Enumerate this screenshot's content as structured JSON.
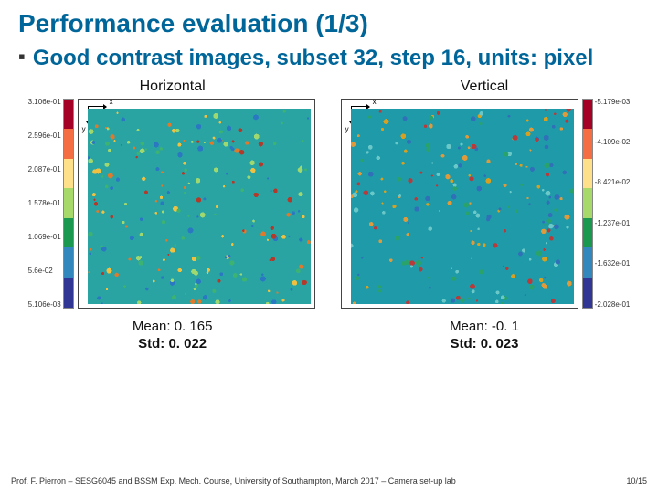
{
  "title": "Performance evaluation (1/3)",
  "subtitle": "Good contrast images, subset 32, step 16, units: pixel",
  "bullet_glyph": "▪",
  "panels": {
    "left": {
      "title": "Horizontal",
      "mean_label": "Mean: 0. 165",
      "std_label": "Std: 0. 022",
      "colorbar_side": "left",
      "cbar_labels": [
        "3.106e-01",
        "2.596e-01",
        "2.087e-01",
        "1.578e-01",
        "1.069e-01",
        "5.6e-02",
        "5.106e-03"
      ],
      "cbar_colors": [
        "#a50026",
        "#f46d43",
        "#fee08b",
        "#a6d96a",
        "#1a9850",
        "#3288bd",
        "#313695"
      ],
      "speckle_base": "#2aa3a3",
      "speckle_accents": [
        "#3cb371",
        "#f0c040",
        "#e0792a",
        "#2a78c2",
        "#a0d870",
        "#b33a2a"
      ]
    },
    "right": {
      "title": "Vertical",
      "mean_label": "Mean: -0. 1",
      "std_label": "Std: 0. 023",
      "colorbar_side": "right",
      "cbar_labels": [
        "-5.179e-03",
        "-4.109e-02",
        "-8.421e-02",
        "-1.237e-01",
        "-1.632e-01",
        "-2.028e-01"
      ],
      "cbar_colors": [
        "#a50026",
        "#f46d43",
        "#fee08b",
        "#a6d96a",
        "#1a9850",
        "#3288bd",
        "#313695"
      ],
      "speckle_base": "#1f9aa8",
      "speckle_accents": [
        "#2aa36a",
        "#e09a3a",
        "#3070b8",
        "#6ac8c8",
        "#d8a020",
        "#b83a3a"
      ]
    }
  },
  "footer": {
    "text": "Prof. F. Pierron – SESG6045 and BSSM Exp. Mech. Course, University of Southampton, March 2017 – Camera set-up lab",
    "pager": "10/15"
  }
}
